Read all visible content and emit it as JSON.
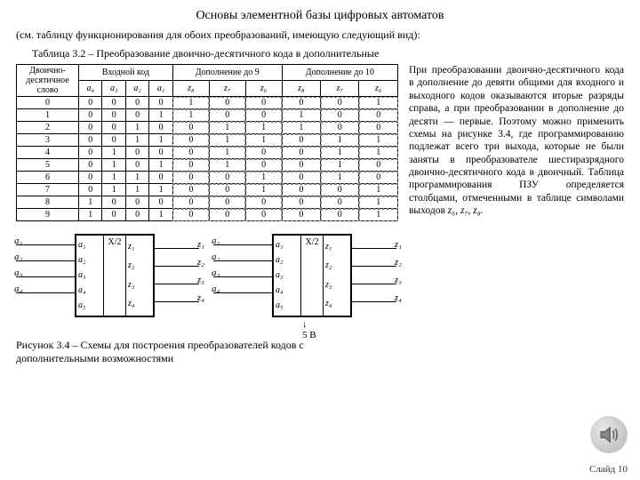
{
  "title": "Основы элементной базы цифровых автоматов",
  "subtitle": "(см. таблицу функционирования для обоих преобразований, имеющую следующий вид):",
  "table_caption": "Таблица 3.2 – Преобразование двоично-десятичного кода в дополнительные",
  "table": {
    "head1": [
      "Двоично-\nдесятичное\nслово",
      "Входной код",
      "Дополнение до 9",
      "Дополнение до 10"
    ],
    "head2": {
      "in": [
        "a₄",
        "a₃",
        "a₂",
        "a₁"
      ],
      "c9": [
        "z₈",
        "z₇",
        "z₆"
      ],
      "c10": [
        "z₈",
        "z₇",
        "z₆"
      ]
    },
    "rows": [
      [
        "0",
        "0",
        "0",
        "0",
        "0",
        "1",
        "0",
        "0",
        "0",
        "0",
        "1"
      ],
      [
        "1",
        "0",
        "0",
        "0",
        "1",
        "1",
        "0",
        "0",
        "1",
        "0",
        "0"
      ],
      [
        "2",
        "0",
        "0",
        "1",
        "0",
        "0",
        "1",
        "1",
        "1",
        "0",
        "0"
      ],
      [
        "3",
        "0",
        "0",
        "1",
        "1",
        "0",
        "1",
        "1",
        "0",
        "1",
        "1"
      ],
      [
        "4",
        "0",
        "1",
        "0",
        "0",
        "0",
        "1",
        "0",
        "0",
        "1",
        "1"
      ],
      [
        "5",
        "0",
        "1",
        "0",
        "1",
        "0",
        "1",
        "0",
        "0",
        "1",
        "0"
      ],
      [
        "6",
        "0",
        "1",
        "1",
        "0",
        "0",
        "0",
        "1",
        "0",
        "1",
        "0"
      ],
      [
        "7",
        "0",
        "1",
        "1",
        "1",
        "0",
        "0",
        "1",
        "0",
        "0",
        "1"
      ],
      [
        "8",
        "1",
        "0",
        "0",
        "0",
        "0",
        "0",
        "0",
        "0",
        "0",
        "1"
      ],
      [
        "9",
        "1",
        "0",
        "0",
        "1",
        "0",
        "0",
        "0",
        "0",
        "0",
        "1"
      ]
    ]
  },
  "paragraph": "При преобразовании двоично-десятичного кода в дополнение до девяти общими для входного и выходного кодов оказываются вторые разряды справа, а при преобразовании в дополнение до десяти — первые. Поэтому можно применить схемы на рисунке 3.4, где программированию подлежат всего три выхода, которые не были заняты в преобразователе шестиразрядного двоично-десятичного кода в двоичный. Таблица программирования ПЗУ определяется столбцами, отмеченными в таблице символами выходов ",
  "paragraph_tail": "z₆, z₇, z₈.",
  "fig": {
    "left_labels": [
      "a₁",
      "a₂",
      "a₃",
      "a₄"
    ],
    "chip_left": [
      "a₁",
      "a₂",
      "a₃",
      "a₄",
      "a₅"
    ],
    "chip_mid": "X/2",
    "chip_right": [
      "z₁",
      "z₂",
      "z₃",
      "z₄"
    ],
    "right_labels": [
      "z₁",
      "z₂",
      "z₃",
      "z₄"
    ],
    "bottom": "5 В"
  },
  "fig_caption": "Рисунок 3.4 – Схемы для построения преобразователей кодов с дополнительными возможностями",
  "slide_num": "Слайд 10"
}
